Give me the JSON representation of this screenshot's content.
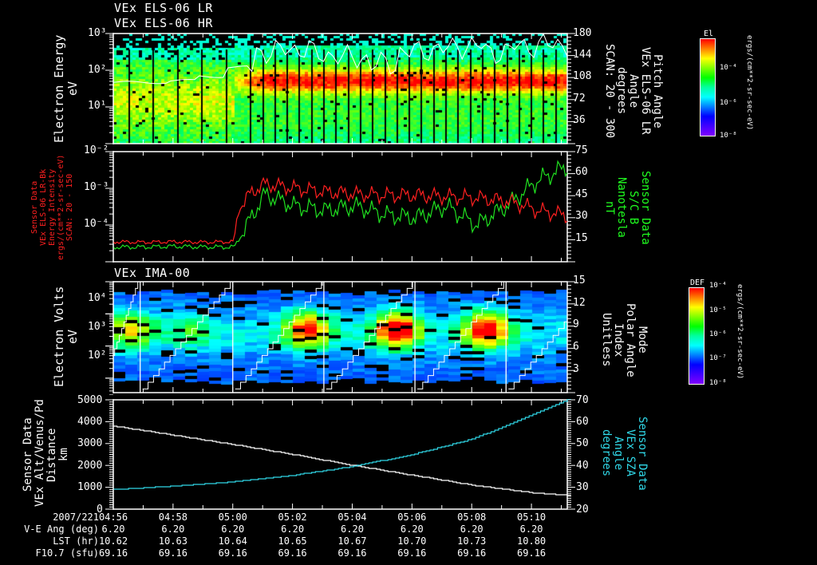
{
  "panels": [
    {
      "id": "p1",
      "titles": [
        "VEx ELS-06 LR",
        "VEx ELS-06 HR"
      ],
      "left_label": [
        "Electron Energy",
        "eV"
      ],
      "left_ticks": [
        "10³",
        "10²",
        "10¹"
      ],
      "right_ticks": [
        "180",
        "144",
        "108",
        "72",
        "36"
      ],
      "right_label": [
        "Pitch Angle",
        "VEx ELS-06 LR",
        "Angle",
        "degrees",
        "SCAN: 20 - 300"
      ],
      "colorbar": {
        "title": "El",
        "labels": [
          "10⁻⁴",
          "10⁻⁶",
          "10⁻⁸"
        ],
        "units": "ergs/(cm**2-sr-sec-eV)"
      }
    },
    {
      "id": "p2",
      "left_ticks": [
        "10⁻²",
        "10⁻³",
        "10⁻⁴"
      ],
      "left_label": [
        "Sensor Data",
        "VEx ELS-06 LR-Bk",
        "Energy Intensity",
        "ergs/(cm**2-sr-sec-eV)",
        "SCAN: 20 - 150"
      ],
      "right_ticks": [
        "75",
        "60",
        "45",
        "30",
        "15"
      ],
      "right_label": [
        "Sensor Data",
        "S/C B",
        "Nanotesla",
        "nT"
      ]
    },
    {
      "id": "p3",
      "titles": [
        "VEx IMA-00"
      ],
      "left_label": [
        "Electron Volts",
        "eV"
      ],
      "left_ticks": [
        "10⁴",
        "10³",
        "10²"
      ],
      "right_ticks": [
        "15",
        "12",
        "9",
        "6",
        "3"
      ],
      "right_label": [
        "Mode",
        "Polar Angle",
        "Index",
        "Unitless"
      ],
      "colorbar": {
        "title": "DEF",
        "labels": [
          "10⁻⁴",
          "10⁻⁵",
          "10⁻⁶",
          "10⁻⁷",
          "10⁻⁸"
        ],
        "units": "ergs/(cm**2-sr-sec-eV)"
      }
    },
    {
      "id": "p4",
      "left_ticks": [
        "5000",
        "4000",
        "3000",
        "2000",
        "1000",
        "0"
      ],
      "left_label": [
        "Sensor Data",
        "VEx Alt/Venus/Pd",
        "Distance",
        "km"
      ],
      "right_ticks": [
        "70",
        "60",
        "50",
        "40",
        "30",
        "20"
      ],
      "right_label": [
        "Sensor Data",
        "VEx SZA",
        "Angle",
        "degrees"
      ]
    }
  ],
  "footer": {
    "row_labels": [
      "2007/221",
      "V-E Ang (deg)",
      "LST (hr)",
      "F10.7 (sfu)"
    ],
    "times": [
      "04:56",
      "04:58",
      "05:00",
      "05:02",
      "05:04",
      "05:06",
      "05:08",
      "05:10"
    ],
    "ve_ang": [
      "6.20",
      "6.20",
      "6.20",
      "6.20",
      "6.20",
      "6.20",
      "6.20",
      "6.20"
    ],
    "lst": [
      "10.62",
      "10.63",
      "10.64",
      "10.65",
      "10.67",
      "10.70",
      "10.73",
      "10.80"
    ],
    "f107": [
      "69.16",
      "69.16",
      "69.16",
      "69.16",
      "69.16",
      "69.16",
      "69.16",
      "69.16"
    ]
  },
  "colors": {
    "red_series": "#ff2020",
    "green_series": "#20e020",
    "cyan_series": "#30d8e8",
    "white": "#ffffff"
  },
  "chart_data": [
    {
      "type": "heatmap",
      "title": "VEx ELS-06 LR / VEx ELS-06 HR",
      "ylabel": "Electron Energy (eV)",
      "yscale": "log",
      "ylim": [
        1,
        1000
      ],
      "y2label": "Pitch Angle VEx ELS-06 LR Angle degrees SCAN: 20 - 300",
      "y2lim": [
        0,
        180
      ],
      "colorbar": "El ergs/(cm**2-sr-sec-eV), 1e-8 to 1e-3",
      "x_range": [
        "04:56",
        "05:11"
      ],
      "features": {
        "low_flux_until": "05:00",
        "peak_energy_after_05:00_eV": 60
      },
      "pitch_angle_overlay": [
        100,
        100,
        103,
        110,
        125,
        150,
        155,
        145,
        140,
        130,
        150,
        155,
        160,
        150,
        160,
        162
      ]
    },
    {
      "type": "line",
      "x": [
        "04:56",
        "04:57",
        "04:58",
        "04:59",
        "05:00",
        "05:01",
        "05:02",
        "05:03",
        "05:04",
        "05:05",
        "05:06",
        "05:07",
        "05:08",
        "05:09",
        "05:10",
        "05:11"
      ],
      "series": [
        {
          "name": "VEx ELS-06 LR-Bk Energy Intensity",
          "axis": "left",
          "values": [
            3.5e-05,
            3.4e-05,
            3.5e-05,
            3.4e-05,
            3.5e-05,
            0.0013,
            0.001,
            0.0008,
            0.0007,
            0.00065,
            0.00065,
            0.0006,
            0.00055,
            0.00045,
            0.00025,
            0.00018
          ]
        },
        {
          "name": "S/C B (nT)",
          "axis": "right",
          "values": [
            10,
            10,
            10.5,
            10,
            10,
            46,
            38,
            35,
            38,
            32,
            30,
            38,
            25,
            38,
            55,
            65
          ]
        }
      ],
      "ylabel": "Energy Intensity ergs/(cm**2-sr-sec-eV)",
      "yscale": "log",
      "ylim": [
        1e-05,
        0.01
      ],
      "y2label": "Sensor Data S/C B Nanotesla nT",
      "y2lim": [
        0,
        75
      ]
    },
    {
      "type": "heatmap",
      "title": "VEx IMA-00",
      "ylabel": "Electron Volts (eV)",
      "yscale": "log",
      "ylim": [
        10,
        30000
      ],
      "y2label": "Mode Polar Angle Index Unitless",
      "y2lim": [
        0,
        15
      ],
      "colorbar": "DEF ergs/(cm**2-sr-sec-eV), 1e-8 to 1e-4",
      "scan_boundaries": [
        "04:57",
        "05:00",
        "05:03",
        "05:07",
        "05:10"
      ],
      "peak_times": [
        "05:02",
        "05:05",
        "05:08"
      ],
      "peak_energy_eV": 1000
    },
    {
      "type": "line",
      "x": [
        "04:56",
        "04:58",
        "05:00",
        "05:02",
        "05:04",
        "05:06",
        "05:08",
        "05:10",
        "05:11"
      ],
      "series": [
        {
          "name": "VEx Alt/Venus/Pd Distance (km)",
          "axis": "left",
          "values": [
            3800,
            3380,
            2950,
            2500,
            2000,
            1550,
            1100,
            750,
            650
          ]
        },
        {
          "name": "VEx SZA Angle (degrees)",
          "axis": "right",
          "values": [
            29,
            30.5,
            32.5,
            35.5,
            39.5,
            45,
            52,
            63,
            69
          ]
        }
      ],
      "ylabel": "Distance km",
      "ylim": [
        0,
        5000
      ],
      "y2label": "Angle degrees",
      "y2lim": [
        20,
        70
      ]
    }
  ]
}
